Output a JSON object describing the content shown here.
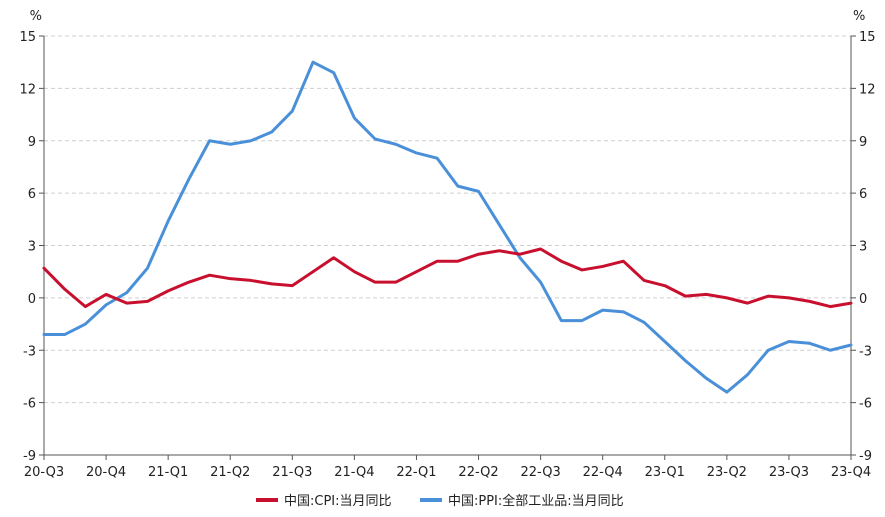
{
  "chart_data": {
    "type": "line",
    "y_unit_left": "%",
    "y_unit_right": "%",
    "ylim": [
      -9,
      15
    ],
    "yticks": [
      -9,
      -6,
      -3,
      0,
      3,
      6,
      9,
      12,
      15
    ],
    "x_tick_labels": [
      "20-Q3",
      "20-Q4",
      "21-Q1",
      "21-Q2",
      "21-Q3",
      "21-Q4",
      "22-Q1",
      "22-Q2",
      "22-Q3",
      "22-Q4",
      "23-Q1",
      "23-Q2",
      "23-Q3",
      "23-Q4"
    ],
    "x_months": [
      "2020-07",
      "2020-08",
      "2020-09",
      "2020-10",
      "2020-11",
      "2020-12",
      "2021-01",
      "2021-02",
      "2021-03",
      "2021-04",
      "2021-05",
      "2021-06",
      "2021-07",
      "2021-08",
      "2021-09",
      "2021-10",
      "2021-11",
      "2021-12",
      "2022-01",
      "2022-02",
      "2022-03",
      "2022-04",
      "2022-05",
      "2022-06",
      "2022-07",
      "2022-08",
      "2022-09",
      "2022-10",
      "2022-11",
      "2022-12",
      "2023-01",
      "2023-02",
      "2023-03",
      "2023-04",
      "2023-05",
      "2023-06",
      "2023-07",
      "2023-08",
      "2023-09",
      "2023-10"
    ],
    "grid": "horizontal dashed",
    "legend_position": "bottom",
    "series": [
      {
        "name": "中国:CPI:当月同比",
        "color": "#c8102e",
        "values": [
          1.7,
          0.5,
          -0.5,
          0.2,
          -0.3,
          -0.2,
          0.4,
          0.9,
          1.3,
          1.1,
          1.0,
          0.8,
          0.7,
          1.5,
          2.3,
          1.5,
          0.9,
          0.9,
          1.5,
          2.1,
          2.1,
          2.5,
          2.7,
          2.5,
          2.8,
          2.1,
          1.6,
          1.8,
          2.1,
          1.0,
          0.7,
          0.1,
          0.2,
          0.0,
          -0.3,
          0.1,
          0.0,
          -0.2,
          -0.5,
          -0.3
        ]
      },
      {
        "name": "中国:PPI:全部工业品:当月同比",
        "color": "#4a90d9",
        "values": [
          -2.1,
          -2.1,
          -1.5,
          -0.4,
          0.3,
          1.7,
          4.4,
          6.8,
          9.0,
          8.8,
          9.0,
          9.5,
          10.7,
          13.5,
          12.9,
          10.3,
          9.1,
          8.8,
          8.3,
          8.0,
          6.4,
          6.1,
          4.2,
          2.3,
          0.9,
          -1.3,
          -1.3,
          -0.7,
          -0.8,
          -1.4,
          -2.5,
          -3.6,
          -4.6,
          -5.4,
          -4.4,
          -3.0,
          -2.5,
          -2.6,
          -3.0,
          -2.7
        ]
      }
    ]
  }
}
